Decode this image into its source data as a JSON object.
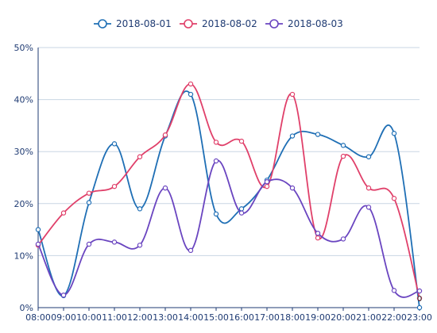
{
  "chart_data": {
    "type": "line",
    "categories": [
      "08:00",
      "09:00",
      "10:00",
      "11:00",
      "12:00",
      "13:00",
      "14:00",
      "15:00",
      "16:00",
      "17:00",
      "18:00",
      "19:00",
      "20:00",
      "21:00",
      "22:00",
      "23:00"
    ],
    "yticks": [
      "0%",
      "10%",
      "20%",
      "30%",
      "40%",
      "50%"
    ],
    "ylim": [
      0,
      50
    ],
    "grid": true,
    "legend_position": "top-center",
    "end_label": "0",
    "series": [
      {
        "name": "2018-08-01",
        "color": "#1f6fb5",
        "values": [
          15,
          2.3,
          20.2,
          31.5,
          19,
          33,
          41,
          18,
          19,
          24.5,
          33,
          33.3,
          31.2,
          29,
          33.5,
          0
        ]
      },
      {
        "name": "2018-08-02",
        "color": "#e0406a",
        "values": [
          12,
          18.2,
          22,
          23.3,
          29,
          33.2,
          43,
          31.8,
          32,
          23.3,
          41,
          13.4,
          29.1,
          23,
          21,
          1.8
        ]
      },
      {
        "name": "2018-08-03",
        "color": "#6a45c0",
        "values": [
          12.2,
          2.4,
          12.2,
          12.6,
          12,
          23,
          11,
          28.2,
          18.2,
          24.2,
          23,
          14.3,
          13.2,
          19.3,
          3.3,
          3.2
        ]
      }
    ]
  }
}
